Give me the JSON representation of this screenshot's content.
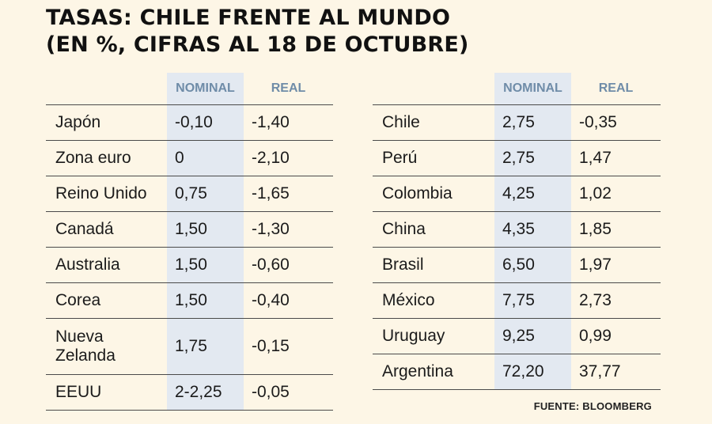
{
  "title": {
    "line1": "TASAS: CHILE FRENTE AL MUNDO",
    "line2": "(EN %, CIFRAS AL 18 DE OCTUBRE)"
  },
  "colors": {
    "background": "#fdf6e6",
    "highlight": "#e3e9f1",
    "header_text": "#6f8ca8"
  },
  "chart_data": [
    {
      "type": "table",
      "columns": [
        "",
        "NOMINAL",
        "REAL"
      ],
      "rows": [
        {
          "country": "Japón",
          "nominal": "-0,10",
          "real": "-1,40"
        },
        {
          "country": "Zona euro",
          "nominal": "0",
          "real": "-2,10"
        },
        {
          "country": "Reino Unido",
          "nominal": "0,75",
          "real": "-1,65"
        },
        {
          "country": "Canadá",
          "nominal": "1,50",
          "real": "-1,30"
        },
        {
          "country": "Australia",
          "nominal": "1,50",
          "real": "-0,60"
        },
        {
          "country": "Corea",
          "nominal": "1,50",
          "real": "-0,40"
        },
        {
          "country": "Nueva Zelanda",
          "country_lines": [
            "Nueva",
            "Zelanda"
          ],
          "nominal": "1,75",
          "real": "-0,15"
        },
        {
          "country": "EEUU",
          "nominal": "2-2,25",
          "real": "-0,05"
        }
      ]
    },
    {
      "type": "table",
      "columns": [
        "",
        "NOMINAL",
        "REAL"
      ],
      "rows": [
        {
          "country": "Chile",
          "nominal": "2,75",
          "real": "-0,35"
        },
        {
          "country": "Perú",
          "nominal": "2,75",
          "real": "1,47"
        },
        {
          "country": "Colombia",
          "nominal": "4,25",
          "real": "1,02"
        },
        {
          "country": "China",
          "nominal": "4,35",
          "real": "1,85"
        },
        {
          "country": "Brasil",
          "nominal": "6,50",
          "real": "1,97"
        },
        {
          "country": "México",
          "nominal": "7,75",
          "real": "2,73"
        },
        {
          "country": "Uruguay",
          "nominal": "9,25",
          "real": "0,99"
        },
        {
          "country": "Argentina",
          "nominal": "72,20",
          "real": "37,77"
        }
      ]
    }
  ],
  "source": "FUENTE: BLOOMBERG"
}
